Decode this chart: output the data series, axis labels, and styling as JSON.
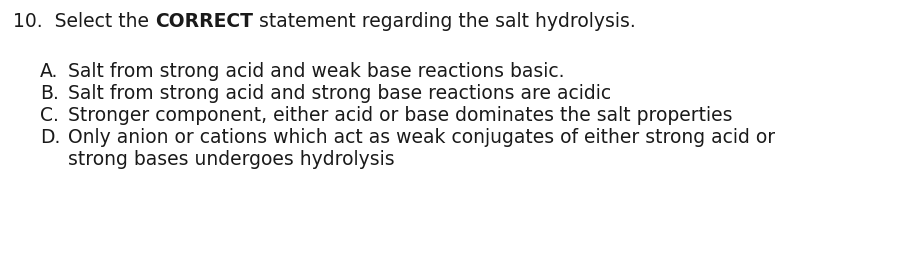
{
  "background_color": "#ffffff",
  "question_prefix": "10.  Select the ",
  "question_bold": "CORRECT",
  "question_suffix": " statement regarding the salt hydrolysis.",
  "options": [
    {
      "label": "A.",
      "text": "Salt from strong acid and weak base reactions basic."
    },
    {
      "label": "B.",
      "text": "Salt from strong acid and strong base reactions are acidic"
    },
    {
      "label": "C.",
      "text": "Stronger component, either acid or base dominates the salt properties"
    },
    {
      "label": "D.",
      "line1": "Only anion or cations which act as weak conjugates of either strong acid or",
      "line2": "strong bases undergoes hydrolysis"
    }
  ],
  "font_size": 13.5,
  "text_color": "#1a1a1a",
  "fig_width": 9.22,
  "fig_height": 2.72,
  "dpi": 100
}
